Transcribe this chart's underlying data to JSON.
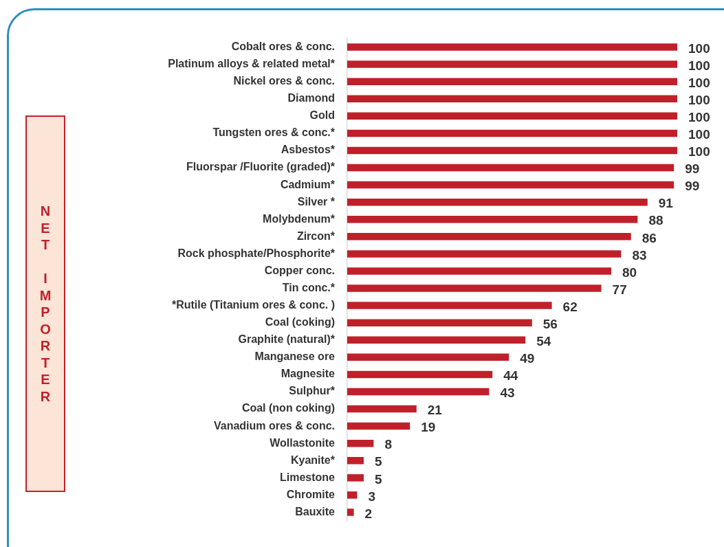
{
  "chart_data": {
    "type": "bar",
    "orientation": "horizontal",
    "ylabel": "NET IMPORTER",
    "categories": [
      "Cobalt ores & conc.",
      "Platinum alloys & related metal*",
      "Nickel ores & conc.",
      "Diamond",
      "Gold",
      "Tungsten ores & conc.*",
      "Asbestos*",
      "Fluorspar /Fluorite (graded)*",
      "Cadmium*",
      "Silver *",
      "Molybdenum*",
      "Zircon*",
      "Rock phosphate/Phosphorite*",
      "Copper conc.",
      "Tin conc.*",
      "*Rutile (Titanium ores & conc. )",
      "Coal (coking)",
      "Graphite (natural)*",
      "Manganese ore",
      "Magnesite",
      "Sulphur*",
      "Coal (non coking)",
      "Vanadium ores & conc.",
      "Wollastonite",
      "Kyanite*",
      "Limestone",
      "Chromite",
      "Bauxite"
    ],
    "values": [
      100,
      100,
      100,
      100,
      100,
      100,
      100,
      99,
      99,
      91,
      88,
      86,
      83,
      80,
      77,
      62,
      56,
      54,
      49,
      44,
      43,
      21,
      19,
      8,
      5,
      5,
      3,
      2
    ],
    "color": "#c0202a",
    "xlim": [
      0,
      100
    ],
    "tick_labels": "y",
    "legend": false,
    "data_labels": true
  }
}
